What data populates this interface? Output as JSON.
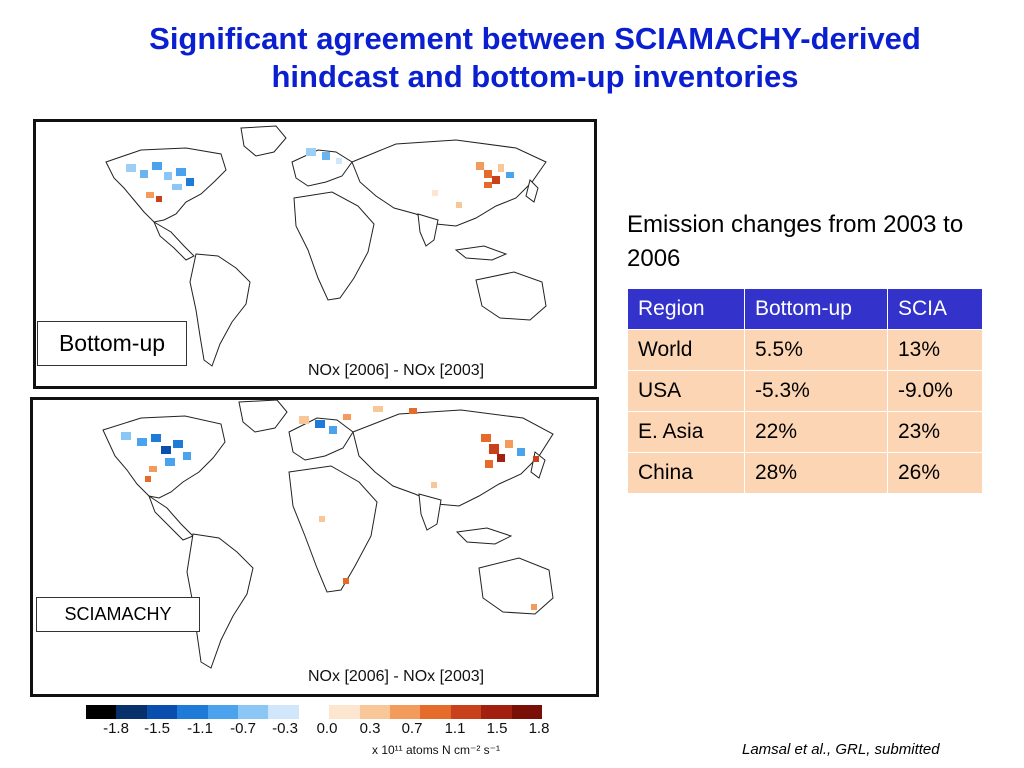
{
  "slide": {
    "title_line1": "Significant agreement between SCIAMACHY-derived",
    "title_line2": "hindcast and bottom-up inventories"
  },
  "maps": {
    "top": {
      "label": "Bottom-up",
      "caption": "NOx [2006] - NOx [2003]"
    },
    "bottom": {
      "label": "SCIAMACHY",
      "caption": "NOx [2006] - NOx [2003]"
    }
  },
  "emissions": {
    "heading": "Emission changes from 2003 to 2006",
    "headers": [
      "Region",
      "Bottom-up",
      "SCIA"
    ],
    "rows": [
      [
        "World",
        "5.5%",
        "13%"
      ],
      [
        "USA",
        "-5.3%",
        "-9.0%"
      ],
      [
        "E. Asia",
        "22%",
        "23%"
      ],
      [
        "China",
        "28%",
        "26%"
      ]
    ],
    "header_color": "#3333cc",
    "cell_color": "#fcd5b4"
  },
  "colorbar": {
    "ticks": [
      "-1.8",
      "-1.5",
      "-1.1",
      "-0.7",
      "-0.3",
      "0.0",
      "0.3",
      "0.7",
      "1.1",
      "1.5",
      "1.8"
    ],
    "unit": "x 10¹¹ atoms N cm⁻² s⁻¹",
    "colors": [
      "#000000",
      "#08306b",
      "#0b4fae",
      "#1f7bd8",
      "#4aa3ec",
      "#8cc6f4",
      "#cfe6fb",
      "#ffffff",
      "#fde6cf",
      "#f9c697",
      "#f29b5c",
      "#e46b2a",
      "#c9411b",
      "#a31f10",
      "#7a0f08"
    ]
  },
  "citation": "Lamsal et al., GRL, submitted"
}
